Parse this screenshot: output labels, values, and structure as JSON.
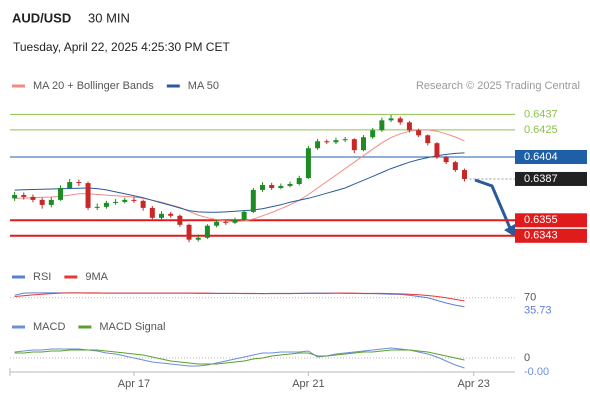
{
  "chart_data": [
    {
      "type": "candlestick",
      "title": "AUD/USD",
      "timeframe": "30 MIN",
      "subtitle": "Tuesday, April 22, 2025 4:25:30 PM CET",
      "credit": "Research © 2025 Trading Central",
      "categories": [
        null,
        null,
        null,
        null,
        null,
        null,
        null,
        null,
        null,
        null,
        null,
        null,
        null,
        "Apr 17",
        null,
        null,
        null,
        null,
        null,
        null,
        null,
        null,
        null,
        null,
        null,
        null,
        null,
        null,
        null,
        null,
        null,
        null,
        "Apr 21",
        null,
        null,
        null,
        null,
        null,
        null,
        null,
        null,
        null,
        null,
        null,
        null,
        null,
        null,
        null,
        null,
        null,
        "Apr 23",
        null,
        null,
        null,
        null
      ],
      "open": [
        0.6372,
        0.63746,
        0.63731,
        0.63708,
        0.63669,
        0.63708,
        0.638,
        0.63846,
        0.63838,
        0.63646,
        0.63654,
        0.63685,
        0.63692,
        0.63708,
        0.637,
        0.63646,
        0.63569,
        0.636,
        0.63585,
        0.63515,
        0.634,
        0.63415,
        0.63508,
        0.63538,
        0.63531,
        0.63554,
        0.63615,
        0.63785,
        0.63823,
        0.638,
        0.63816,
        0.63831,
        0.63877,
        0.64108,
        0.64162,
        0.64154,
        0.6417,
        0.64178,
        0.64093,
        0.64193,
        0.64247,
        0.64324,
        0.64339,
        0.64308,
        0.64247,
        0.64208,
        0.64147,
        0.64039,
        0.64,
        0.63939,
        null,
        null,
        null,
        null,
        null
      ],
      "high": [
        0.6377,
        0.63765,
        0.6375,
        0.63725,
        0.6373,
        0.6382,
        0.6387,
        0.63865,
        0.6385,
        0.6368,
        0.637,
        0.63715,
        0.63725,
        0.6373,
        0.6371,
        0.6366,
        0.6362,
        0.63615,
        0.63595,
        0.63525,
        0.6344,
        0.6352,
        0.63555,
        0.6355,
        0.6357,
        0.6363,
        0.638,
        0.63845,
        0.6384,
        0.63835,
        0.6385,
        0.63895,
        0.64125,
        0.6418,
        0.64175,
        0.6419,
        0.64195,
        0.64185,
        0.6421,
        0.64265,
        0.64345,
        0.64365,
        0.64355,
        0.6432,
        0.6426,
        0.64215,
        0.64155,
        0.6405,
        0.6401,
        0.6395,
        null,
        null,
        null,
        null,
        null
      ],
      "low": [
        0.637,
        0.6371,
        0.6369,
        0.6364,
        0.6365,
        0.637,
        0.6379,
        0.63815,
        0.6363,
        0.6363,
        0.6364,
        0.6367,
        0.6368,
        0.63685,
        0.63625,
        0.6355,
        0.63555,
        0.6357,
        0.635,
        0.6338,
        0.63385,
        0.63405,
        0.63495,
        0.63515,
        0.6352,
        0.63545,
        0.63605,
        0.6377,
        0.63785,
        0.6379,
        0.63805,
        0.6382,
        0.6387,
        0.64095,
        0.6414,
        0.6414,
        0.64155,
        0.6407,
        0.64085,
        0.6418,
        0.64235,
        0.6431,
        0.6429,
        0.6423,
        0.64195,
        0.6413,
        0.64025,
        0.63985,
        0.63925,
        0.6385,
        null,
        null,
        null,
        null,
        null
      ],
      "close": [
        0.63746,
        0.63731,
        0.63708,
        0.63669,
        0.63708,
        0.638,
        0.63846,
        0.63838,
        0.63646,
        0.63654,
        0.63685,
        0.63692,
        0.63708,
        0.637,
        0.63646,
        0.63569,
        0.636,
        0.63585,
        0.63515,
        0.634,
        0.63415,
        0.63508,
        0.63538,
        0.63531,
        0.63554,
        0.63615,
        0.63785,
        0.63823,
        0.638,
        0.63816,
        0.63831,
        0.63877,
        0.64108,
        0.64162,
        0.64154,
        0.6417,
        0.64178,
        0.64093,
        0.64193,
        0.64247,
        0.64324,
        0.64339,
        0.64308,
        0.64247,
        0.64208,
        0.64147,
        0.64039,
        0.64,
        0.63939,
        0.6387,
        null,
        null,
        null,
        null,
        null
      ],
      "up_color": "#1f8b24",
      "down_color": "#c62828",
      "series": [
        {
          "name": "MA 20 + Bollinger Bands",
          "color": "#f28b82",
          "values": [
            0.6372,
            0.63722,
            0.63725,
            0.63728,
            0.6373,
            0.63735,
            0.63745,
            0.63755,
            0.63755,
            0.6375,
            0.63745,
            0.6374,
            0.63735,
            0.6373,
            0.6372,
            0.63705,
            0.6369,
            0.6367,
            0.6365,
            0.6362,
            0.6359,
            0.6357,
            0.63555,
            0.63545,
            0.6354,
            0.63545,
            0.6356,
            0.63585,
            0.6361,
            0.6364,
            0.6367,
            0.63705,
            0.6375,
            0.638,
            0.6385,
            0.639,
            0.6395,
            0.64,
            0.6405,
            0.641,
            0.6415,
            0.6419,
            0.6422,
            0.6424,
            0.6425,
            0.6425,
            0.6424,
            0.6422,
            0.64195,
            0.64165,
            null,
            null,
            null,
            null,
            null
          ]
        },
        {
          "name": "MA 50",
          "color": "#2a5a9a",
          "values": [
            0.63784,
            0.63786,
            0.63788,
            0.6379,
            0.63792,
            0.63794,
            0.63796,
            0.63798,
            0.638,
            0.63795,
            0.63785,
            0.6377,
            0.63755,
            0.6374,
            0.63725,
            0.63705,
            0.63685,
            0.63665,
            0.63645,
            0.63625,
            0.63615,
            0.63612,
            0.63612,
            0.63615,
            0.6362,
            0.63625,
            0.6363,
            0.6364,
            0.63655,
            0.6367,
            0.6369,
            0.63705,
            0.6372,
            0.6374,
            0.6376,
            0.6378,
            0.638,
            0.6383,
            0.6386,
            0.6389,
            0.6392,
            0.6395,
            0.63975,
            0.64,
            0.6402,
            0.64035,
            0.6405,
            0.6406,
            0.64068,
            0.64072,
            null,
            null,
            null,
            null,
            null
          ]
        }
      ],
      "levels": [
        {
          "value": 0.6437,
          "color": "#8bc34a",
          "boxed": false,
          "line": "solid",
          "emphasis": false
        },
        {
          "value": 0.6425,
          "color": "#8bc34a",
          "boxed": false,
          "line": "solid",
          "emphasis": false
        },
        {
          "value": 0.6404,
          "color": "#1f5fa8",
          "boxed": true,
          "line": "solid",
          "emphasis": false
        },
        {
          "value": 0.6387,
          "color": "#222222",
          "boxed": true,
          "line": "dotted",
          "emphasis": false
        },
        {
          "value": 0.6355,
          "color": "#e01b1b",
          "boxed": true,
          "line": "solid",
          "emphasis": true
        },
        {
          "value": 0.6343,
          "color": "#e01b1b",
          "boxed": true,
          "line": "solid",
          "emphasis": true
        }
      ],
      "ylim": [
        0.6332,
        0.6452
      ]
    },
    {
      "type": "line",
      "series": [
        {
          "name": "RSI",
          "color": "#5b7fd6",
          "values": [
            80,
            88,
            89,
            89,
            89,
            89,
            89,
            89,
            88,
            88,
            88,
            88,
            88,
            88,
            88,
            88,
            88,
            88,
            88,
            88,
            87,
            87,
            87,
            87,
            87,
            86,
            86,
            86,
            87,
            87,
            87,
            87,
            88,
            88,
            88,
            88,
            87,
            87,
            86,
            86,
            85,
            84,
            83,
            80,
            75,
            70,
            60,
            50,
            42,
            35.73,
            null,
            null,
            null,
            null,
            null
          ]
        },
        {
          "name": "9MA",
          "color": "#e53935",
          "values": [
            75,
            78,
            81,
            84,
            86,
            88,
            89,
            89,
            89,
            89,
            88,
            88,
            88,
            88,
            88,
            88,
            88,
            88,
            88,
            88,
            88,
            88,
            87,
            87,
            87,
            87,
            87,
            86,
            86,
            86,
            86,
            87,
            87,
            87,
            87,
            88,
            88,
            88,
            87,
            87,
            87,
            86,
            85,
            84,
            82,
            79,
            75,
            70,
            64,
            58,
            null,
            null,
            null,
            null,
            null
          ]
        }
      ],
      "ylim": [
        0,
        100
      ],
      "yticks": [
        70
      ]
    },
    {
      "type": "line",
      "series": [
        {
          "name": "MACD",
          "color": "#6b8fd8",
          "values": [
            0.0006,
            0.0007,
            0.0008,
            0.0008,
            0.0009,
            0.0009,
            0.0009,
            0.0009,
            0.0008,
            0.0007,
            0.0005,
            0.0004,
            0.0002,
            0,
            -0.0002,
            -0.0004,
            -0.0005,
            -0.0006,
            -0.0007,
            -0.0008,
            -0.0008,
            -0.0007,
            -0.0005,
            -0.0003,
            -0.0001,
            0.0001,
            0.0003,
            0.0005,
            0.0005,
            0.0006,
            0.0006,
            0.0006,
            0.0007,
            0.0001,
            0.0002,
            0.0004,
            0.0005,
            0.0006,
            0.0007,
            0.0008,
            0.0009,
            0.001,
            0.0009,
            0.0008,
            0.0006,
            0.0004,
            0.0001,
            -0.0003,
            -0.0007,
            -0.001,
            null,
            null,
            null,
            null,
            null
          ],
          "value_labels": [
            null,
            null,
            null,
            null,
            null,
            null,
            null,
            null,
            null,
            null,
            null,
            null,
            null,
            null,
            null,
            null,
            null,
            null,
            null,
            null,
            null,
            null,
            null,
            null,
            null,
            null,
            null,
            null,
            null,
            null,
            null,
            null,
            null,
            null,
            null,
            null,
            null,
            null,
            null,
            null,
            null,
            null,
            null,
            null,
            null,
            null,
            null,
            null,
            null,
            "-0.00",
            null,
            null,
            null,
            null,
            null
          ]
        },
        {
          "name": "MACD Signal",
          "color": "#5aa02c",
          "values": [
            0.0005,
            0.0005,
            0.0006,
            0.0006,
            0.0007,
            0.0007,
            0.0008,
            0.0008,
            0.0008,
            0.0008,
            0.0007,
            0.0006,
            0.0005,
            0.0004,
            0.0003,
            0.0001,
            -0.0001,
            -0.0003,
            -0.0004,
            -0.0005,
            -0.0006,
            -0.0006,
            -0.0006,
            -0.0005,
            -0.0004,
            -0.0003,
            -0.0001,
            0,
            0.0002,
            0.0003,
            0.0004,
            0.0005,
            0.0005,
            0.0002,
            0.0002,
            0.0003,
            0.0004,
            0.0005,
            0.0006,
            0.0006,
            0.0007,
            0.0008,
            0.0008,
            0.0008,
            0.0007,
            0.0006,
            0.0004,
            0.0002,
            0,
            -0.0002,
            null,
            null,
            null,
            null,
            null
          ]
        }
      ],
      "ylim": [
        -0.0014,
        0.0018
      ],
      "yticks": [
        0
      ]
    }
  ]
}
